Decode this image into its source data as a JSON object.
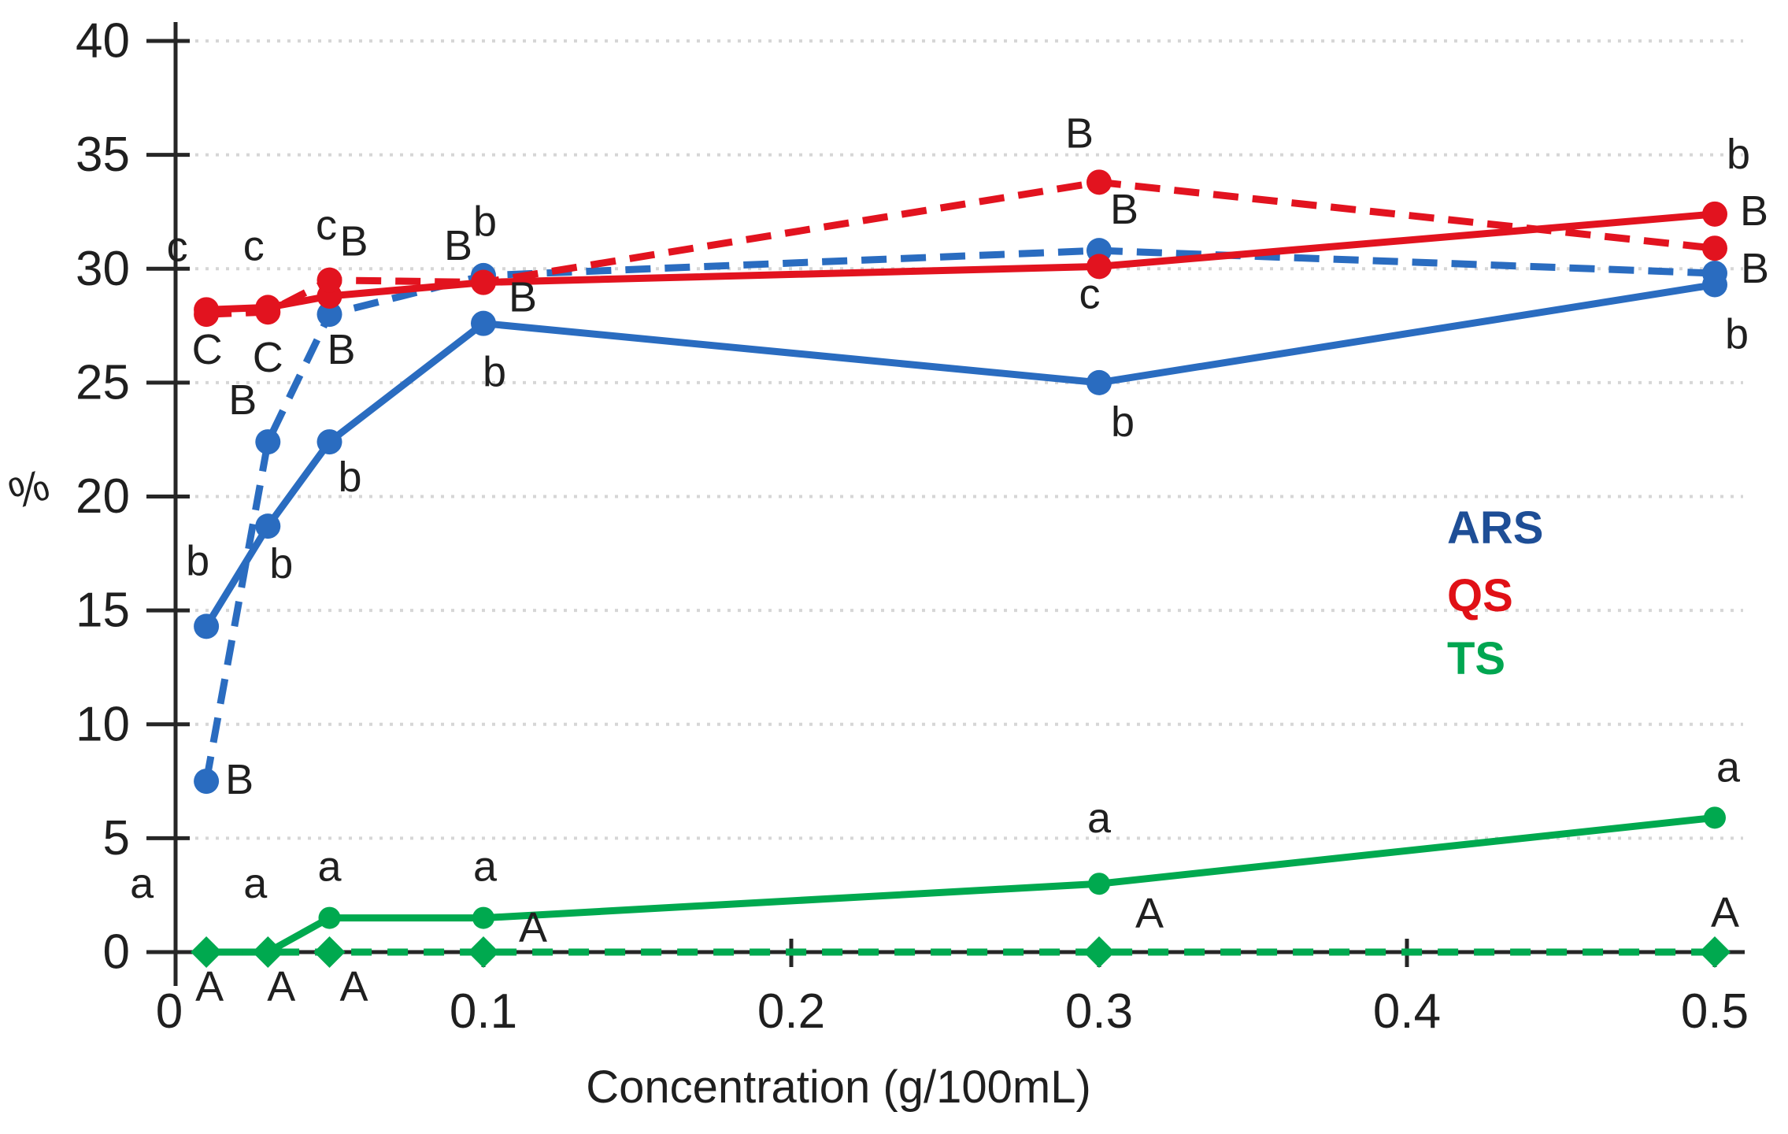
{
  "chart_data": {
    "type": "line",
    "title": "",
    "xlabel": "Concentration (g/100mL)",
    "ylabel": "%",
    "x": [
      0.01,
      0.03,
      0.05,
      0.1,
      0.3,
      0.5
    ],
    "xlim": [
      0,
      0.5
    ],
    "ylim": [
      0,
      40
    ],
    "x_tick_values": [
      0,
      0.1,
      0.2,
      0.3,
      0.4,
      0.5
    ],
    "x_tick_labels": [
      "0",
      "0.1",
      "0.2",
      "0.3",
      "0.4",
      "0.5"
    ],
    "y_tick_values": [
      0,
      5,
      10,
      15,
      20,
      25,
      30,
      35,
      40
    ],
    "y_tick_labels": [
      "0",
      "5",
      "10",
      "15",
      "20",
      "25",
      "30",
      "35",
      "40"
    ],
    "grid": "horizontal dotted gridlines at every 5 units, none at 0",
    "legend_position": "right-middle",
    "series": [
      {
        "id": "ars-solid",
        "name": "ARS",
        "style": "solid",
        "color": "#2a6cc0",
        "marker": "circle",
        "values": [
          14.3,
          18.7,
          22.4,
          27.6,
          25.0,
          29.3
        ],
        "point_labels": [
          "b",
          "b",
          "b",
          "b",
          "b",
          "b"
        ],
        "label_offsets": [
          [
            -11,
            -83
          ],
          [
            17,
            48
          ],
          [
            26,
            45
          ],
          [
            14,
            62
          ],
          [
            30,
            50
          ],
          [
            28,
            63
          ]
        ]
      },
      {
        "id": "ars-dashed",
        "name": "ARS",
        "style": "dashed",
        "color": "#2a6cc0",
        "marker": "circle",
        "values": [
          7.5,
          22.4,
          28.0,
          29.7,
          30.8,
          29.8
        ],
        "point_labels": [
          "B",
          "B",
          "B",
          "B",
          "B",
          "B"
        ],
        "label_offsets": [
          [
            42,
            -2
          ],
          [
            -32,
            -53
          ],
          [
            15,
            45
          ],
          [
            -32,
            -38
          ],
          [
            32,
            -52
          ],
          [
            51,
            -6
          ]
        ]
      },
      {
        "id": "qs-solid",
        "name": "QS",
        "style": "solid",
        "color": "#e2131f",
        "marker": "circle",
        "values": [
          28.2,
          28.3,
          28.8,
          29.4,
          30.1,
          32.4
        ],
        "point_labels": [
          "c",
          "c",
          "c",
          "b",
          "c",
          "b"
        ],
        "label_offsets": [
          [
            -37,
            -80
          ],
          [
            -18,
            -78
          ],
          [
            -4,
            -90
          ],
          [
            2,
            -77
          ],
          [
            -12,
            35
          ],
          [
            30,
            -76
          ]
        ]
      },
      {
        "id": "qs-dashed",
        "name": "QS",
        "style": "dashed",
        "color": "#e2131f",
        "marker": "circle",
        "values": [
          28.0,
          28.1,
          29.5,
          29.4,
          33.8,
          30.9
        ],
        "point_labels": [
          "C",
          "C",
          "B",
          "B",
          "B",
          "B"
        ],
        "label_offsets": [
          [
            1,
            45
          ],
          [
            0,
            58
          ],
          [
            31,
            -49
          ],
          [
            50,
            19
          ],
          [
            -25,
            -62
          ],
          [
            50,
            -47
          ]
        ]
      },
      {
        "id": "ts-solid",
        "name": "TS",
        "style": "solid",
        "color": "#00a94f",
        "marker": "circle",
        "values": [
          0,
          0,
          1.5,
          1.5,
          3.0,
          5.9
        ],
        "point_labels": [
          "a",
          "a",
          "a",
          "a",
          "a",
          "a"
        ],
        "label_offsets": [
          [
            -82,
            -87
          ],
          [
            -16,
            -87
          ],
          [
            0,
            -65
          ],
          [
            2,
            -65
          ],
          [
            0,
            -83
          ],
          [
            17,
            -64
          ]
        ]
      },
      {
        "id": "ts-dashed",
        "name": "TS",
        "style": "dashed",
        "color": "#00a94f",
        "marker": "diamond",
        "values": [
          0,
          0,
          0,
          0,
          0,
          0
        ],
        "point_labels": [
          "A",
          "A",
          "A",
          "A",
          "A",
          "A"
        ],
        "label_offsets": [
          [
            4,
            44
          ],
          [
            17,
            44
          ],
          [
            31,
            44
          ],
          [
            63,
            -31
          ],
          [
            64,
            -49
          ],
          [
            13,
            -50
          ]
        ]
      }
    ],
    "legend": [
      {
        "label": "ARS",
        "color": "#1e4e96"
      },
      {
        "label": "QS",
        "color": "#e01016"
      },
      {
        "label": "TS",
        "color": "#00a651"
      }
    ],
    "colors": {
      "axis": "#262626",
      "gridline": "#d6d6d6",
      "point_label_text": "#1f1f1f",
      "tick_label_text": "#1f1f1f"
    }
  }
}
